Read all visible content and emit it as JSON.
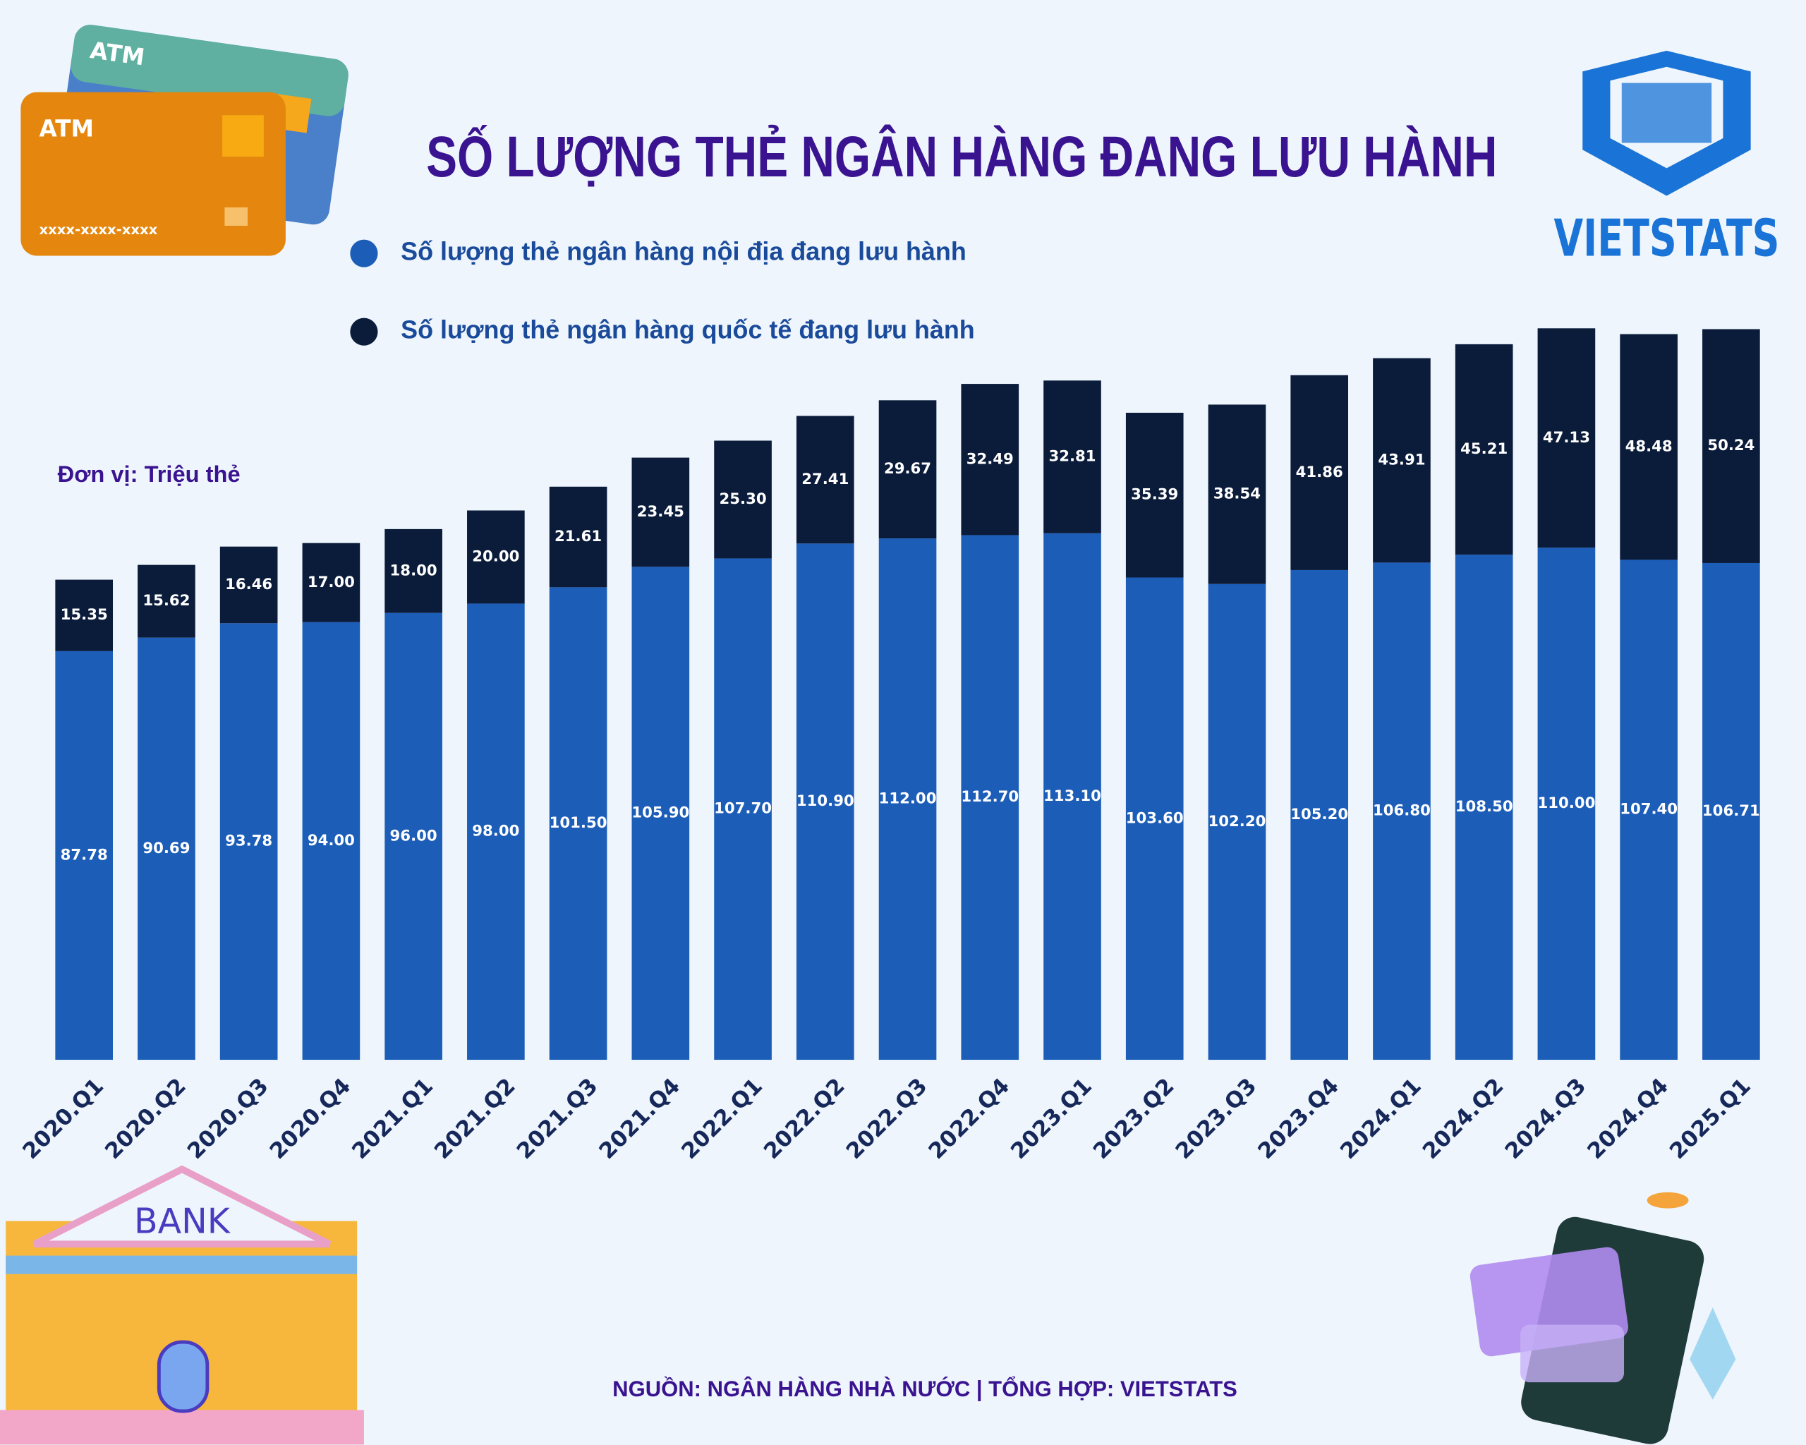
{
  "chart_data": {
    "type": "stacked_bar",
    "title": "SỐ LƯỢNG THẺ NGÂN HÀNG ĐANG LƯU HÀNH",
    "unit_label": "Đơn vị: Triệu thẻ",
    "source": "NGUỒN: NGÂN HÀNG NHÀ NƯỚC | TỔNG HỢP: VIETSTATS",
    "categories": [
      "2020.Q1",
      "2020.Q2",
      "2020.Q3",
      "2020.Q4",
      "2021.Q1",
      "2021.Q2",
      "2021.Q3",
      "2021.Q4",
      "2022.Q1",
      "2022.Q2",
      "2022.Q3",
      "2022.Q4",
      "2023.Q1",
      "2023.Q2",
      "2023.Q3",
      "2023.Q4",
      "2024.Q1",
      "2024.Q2",
      "2024.Q3",
      "2024.Q4",
      "2025.Q1"
    ],
    "series": [
      {
        "name": "Số lượng thẻ ngân hàng nội địa đang lưu hành",
        "color": "#1c5db8",
        "values": [
          87.78,
          90.69,
          93.78,
          94.0,
          96.0,
          98.0,
          101.5,
          105.9,
          107.7,
          110.9,
          112.0,
          112.7,
          113.1,
          103.6,
          102.2,
          105.2,
          106.8,
          108.5,
          110.0,
          107.4,
          106.71
        ],
        "value_labels": [
          "87.78",
          "90.69",
          "93.78",
          "94.00",
          "96.00",
          "98.00",
          "101.50",
          "105.90",
          "107.70",
          "110.90",
          "112.00",
          "112.70",
          "113.10",
          "103.60",
          "102.20",
          "105.20",
          "106.80",
          "108.50",
          "110.00",
          "107.40",
          "106.71"
        ]
      },
      {
        "name": "Số lượng thẻ ngân hàng quốc tế đang lưu hành",
        "color": "#0b1c3b",
        "values": [
          15.35,
          15.62,
          16.46,
          17.0,
          18.0,
          20.0,
          21.61,
          23.45,
          25.3,
          27.41,
          29.67,
          32.49,
          32.81,
          35.39,
          38.54,
          41.86,
          43.91,
          45.21,
          47.13,
          48.48,
          50.24
        ],
        "value_labels": [
          "15.35",
          "15.62",
          "16.46",
          "17.00",
          "18.00",
          "20.00",
          "21.61",
          "23.45",
          "25.30",
          "27.41",
          "29.67",
          "32.49",
          "32.81",
          "35.39",
          "38.54",
          "41.86",
          "43.91",
          "45.21",
          "47.13",
          "48.48",
          "50.24"
        ]
      }
    ]
  },
  "illustrations": {
    "atm_back": "ATM",
    "atm_front": "ATM",
    "card_number": "xxxx-xxxx-xxxx",
    "bank": "BANK",
    "logo": "VIETSTATS"
  }
}
